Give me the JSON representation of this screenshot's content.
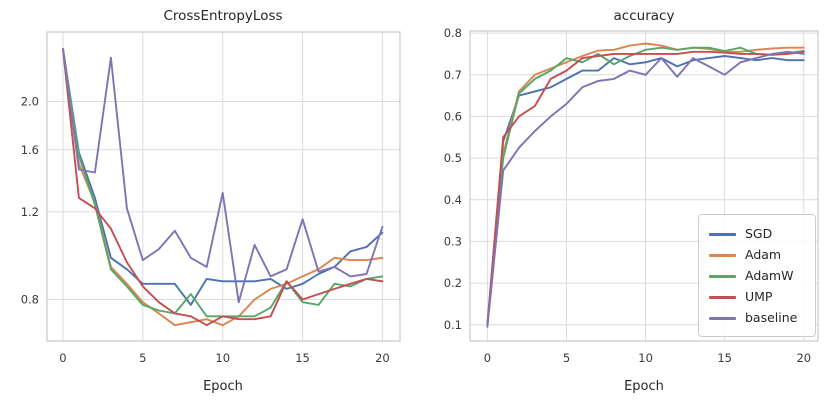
{
  "figure": {
    "background": "#ffffff",
    "grid_color": "#dcdcdc",
    "spine_color": "#cccccc"
  },
  "legend": {
    "position": "lower right of accuracy plot",
    "entries": [
      {
        "label": "SGD",
        "color": "#4c72b0"
      },
      {
        "label": "Adam",
        "color": "#dd8452"
      },
      {
        "label": "AdamW",
        "color": "#55a868"
      },
      {
        "label": "UMP",
        "color": "#c44e52"
      },
      {
        "label": "baseline",
        "color": "#8172b3"
      }
    ]
  },
  "chart_data": [
    {
      "type": "line",
      "title": "CrossEntropyLoss",
      "xlabel": "Epoch",
      "ylabel": "",
      "yscale": "log",
      "grid": true,
      "xlim": [
        -1.0,
        21.1
      ],
      "ylim": [
        0.66,
        2.76
      ],
      "xticks": [
        0,
        5,
        10,
        15,
        20
      ],
      "yticks": [
        0.8,
        1.2,
        1.6,
        2.0
      ],
      "x": [
        0,
        1,
        2,
        3,
        4,
        5,
        6,
        7,
        8,
        9,
        10,
        11,
        12,
        13,
        14,
        15,
        16,
        17,
        18,
        19,
        20
      ],
      "series": [
        {
          "name": "SGD",
          "color": "#4c72b0",
          "values": [
            2.55,
            1.58,
            1.28,
            0.97,
            0.92,
            0.86,
            0.86,
            0.86,
            0.78,
            0.88,
            0.87,
            0.87,
            0.87,
            0.88,
            0.84,
            0.86,
            0.9,
            0.93,
            1.0,
            1.02,
            1.09
          ]
        },
        {
          "name": "Adam",
          "color": "#dd8452",
          "values": [
            2.55,
            1.5,
            1.25,
            0.93,
            0.86,
            0.79,
            0.75,
            0.71,
            0.72,
            0.73,
            0.71,
            0.74,
            0.8,
            0.84,
            0.86,
            0.89,
            0.92,
            0.97,
            0.96,
            0.96,
            0.97
          ]
        },
        {
          "name": "AdamW",
          "color": "#55a868",
          "values": [
            2.55,
            1.56,
            1.24,
            0.92,
            0.85,
            0.78,
            0.76,
            0.75,
            0.82,
            0.74,
            0.74,
            0.74,
            0.74,
            0.77,
            0.87,
            0.79,
            0.78,
            0.86,
            0.85,
            0.88,
            0.89
          ]
        },
        {
          "name": "UMP",
          "color": "#c44e52",
          "values": [
            2.55,
            1.28,
            1.22,
            1.11,
            0.95,
            0.85,
            0.79,
            0.75,
            0.74,
            0.71,
            0.74,
            0.73,
            0.73,
            0.74,
            0.87,
            0.8,
            0.82,
            0.84,
            0.86,
            0.88,
            0.87
          ]
        },
        {
          "name": "baseline",
          "color": "#8172b3",
          "values": [
            2.55,
            1.46,
            1.44,
            2.45,
            1.22,
            0.96,
            1.01,
            1.1,
            0.97,
            0.93,
            1.31,
            0.79,
            1.03,
            0.89,
            0.92,
            1.16,
            0.91,
            0.93,
            0.89,
            0.9,
            1.12
          ]
        }
      ]
    },
    {
      "type": "line",
      "title": "accuracy",
      "xlabel": "Epoch",
      "ylabel": "",
      "yscale": "linear",
      "grid": true,
      "legend": true,
      "xlim": [
        -1.1,
        20.9
      ],
      "ylim": [
        0.061,
        0.805
      ],
      "xticks": [
        0,
        5,
        10,
        15,
        20
      ],
      "yticks": [
        0.1,
        0.2,
        0.3,
        0.4,
        0.5,
        0.6,
        0.7,
        0.8
      ],
      "x": [
        0,
        1,
        2,
        3,
        4,
        5,
        6,
        7,
        8,
        9,
        10,
        11,
        12,
        13,
        14,
        15,
        16,
        17,
        18,
        19,
        20
      ],
      "series": [
        {
          "name": "SGD",
          "color": "#4c72b0",
          "values": [
            0.1,
            0.54,
            0.65,
            0.66,
            0.67,
            0.69,
            0.71,
            0.71,
            0.74,
            0.725,
            0.73,
            0.74,
            0.72,
            0.735,
            0.74,
            0.745,
            0.74,
            0.735,
            0.74,
            0.735,
            0.735
          ]
        },
        {
          "name": "Adam",
          "color": "#dd8452",
          "values": [
            0.1,
            0.51,
            0.66,
            0.7,
            0.715,
            0.73,
            0.745,
            0.758,
            0.76,
            0.77,
            0.775,
            0.77,
            0.76,
            0.765,
            0.762,
            0.755,
            0.755,
            0.76,
            0.763,
            0.765,
            0.765
          ]
        },
        {
          "name": "AdamW",
          "color": "#55a868",
          "values": [
            0.1,
            0.5,
            0.655,
            0.69,
            0.71,
            0.74,
            0.73,
            0.75,
            0.725,
            0.745,
            0.76,
            0.765,
            0.76,
            0.765,
            0.765,
            0.757,
            0.765,
            0.75,
            0.748,
            0.752,
            0.757
          ]
        },
        {
          "name": "UMP",
          "color": "#c44e52",
          "values": [
            0.1,
            0.55,
            0.6,
            0.625,
            0.69,
            0.71,
            0.74,
            0.745,
            0.75,
            0.75,
            0.75,
            0.75,
            0.75,
            0.755,
            0.755,
            0.753,
            0.75,
            0.75,
            0.748,
            0.75,
            0.755
          ]
        },
        {
          "name": "baseline",
          "color": "#8172b3",
          "values": [
            0.095,
            0.47,
            0.525,
            0.565,
            0.6,
            0.63,
            0.67,
            0.685,
            0.69,
            0.71,
            0.7,
            0.74,
            0.695,
            0.74,
            0.72,
            0.7,
            0.73,
            0.74,
            0.75,
            0.755,
            0.75
          ]
        }
      ]
    }
  ]
}
